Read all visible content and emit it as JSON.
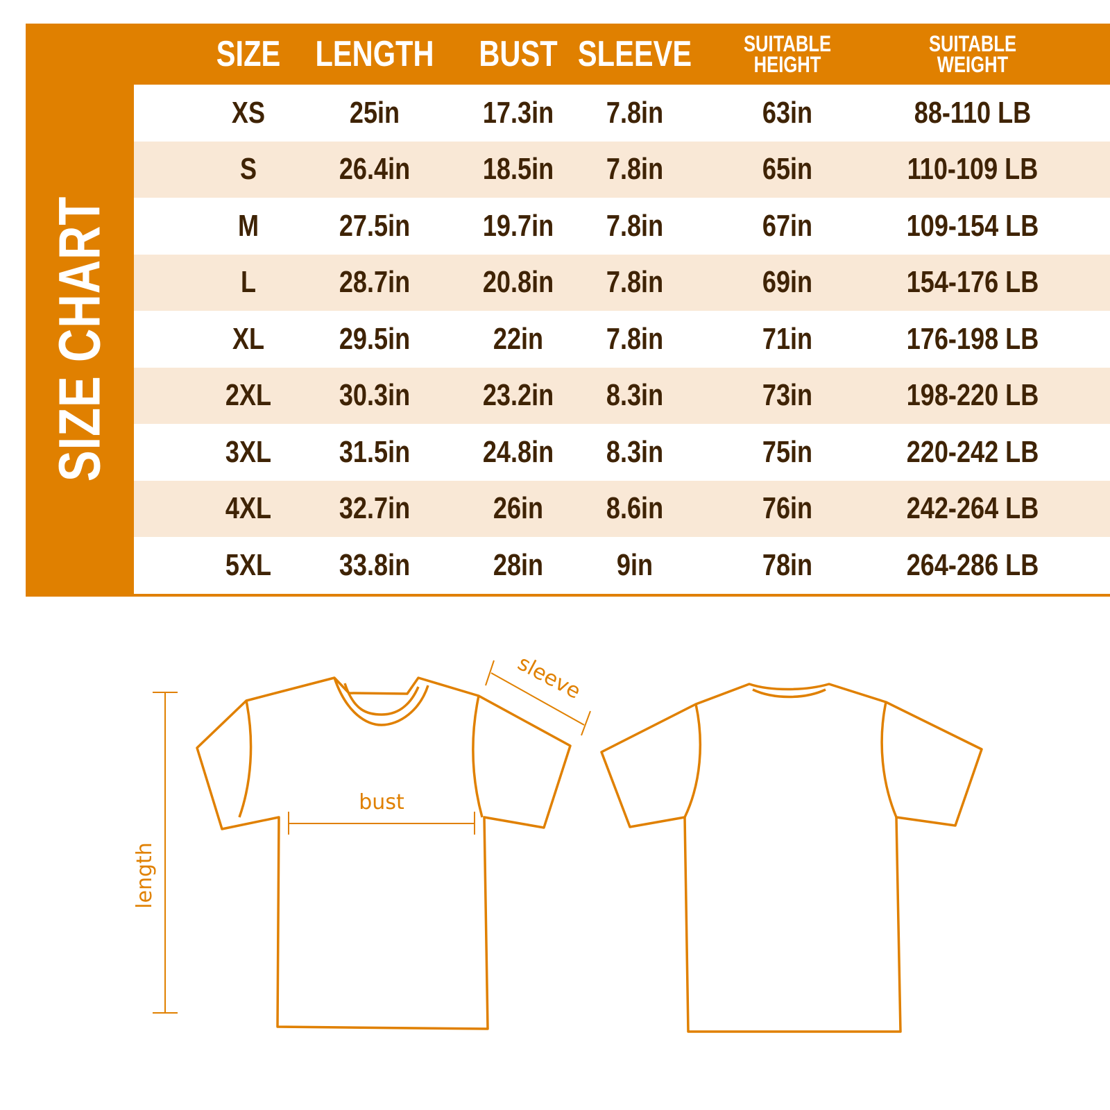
{
  "title": "SIZE CHART",
  "headers": [
    "SIZE",
    "LENGTH",
    "BUST",
    "SLEEVE",
    "SUITABLE HEIGHT",
    "SUITABLE WEIGHT"
  ],
  "rows": [
    [
      "XS",
      "25in",
      "17.3in",
      "7.8in",
      "63in",
      "88-110 LB"
    ],
    [
      "S",
      "26.4in",
      "18.5in",
      "7.8in",
      "65in",
      "110-109 LB"
    ],
    [
      "M",
      "27.5in",
      "19.7in",
      "7.8in",
      "67in",
      "109-154 LB"
    ],
    [
      "L",
      "28.7in",
      "20.8in",
      "7.8in",
      "69in",
      "154-176 LB"
    ],
    [
      "XL",
      "29.5in",
      "22in",
      "7.8in",
      "71in",
      "176-198 LB"
    ],
    [
      "2XL",
      "30.3in",
      "23.2in",
      "8.3in",
      "73in",
      "198-220 LB"
    ],
    [
      "3XL",
      "31.5in",
      "24.8in",
      "8.3in",
      "75in",
      "220-242 LB"
    ],
    [
      "4XL",
      "32.7in",
      "26in",
      "8.6in",
      "76in",
      "242-264 LB"
    ],
    [
      "5XL",
      "33.8in",
      "28in",
      "9in",
      "78in",
      "264-286 LB"
    ]
  ],
  "diagram": {
    "length_label": "length",
    "bust_label": "bust",
    "sleeve_label": "sleeve"
  },
  "colors": {
    "accent": "#e08000",
    "row_alt": "#f9e8d6",
    "text": "#3f2305",
    "header_text": "#ffffff"
  }
}
